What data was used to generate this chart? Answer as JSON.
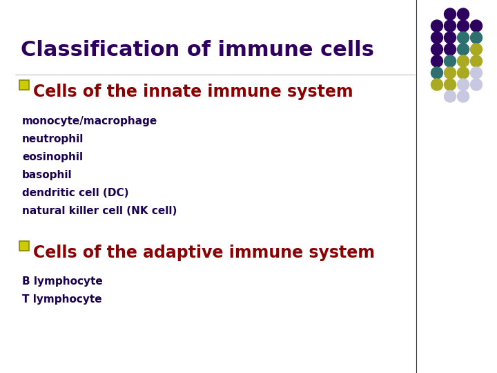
{
  "background_color": "#ffffff",
  "title": "Classification of immune cells",
  "title_color": "#2d0060",
  "title_fontsize": 22,
  "section1_header": "Cells of the innate immune system",
  "section1_header_color": "#8b0000",
  "section1_header_fontsize": 17,
  "section1_items": [
    "monocyte/macrophage",
    "neutrophil",
    "eosinophil",
    "basophil",
    "dendritic cell (DC)",
    "natural killer cell (NK cell)"
  ],
  "section1_items_color": "#1a0050",
  "section1_items_fontsize": 11,
  "section2_header": "Cells of the adaptive immune system",
  "section2_header_color": "#8b0000",
  "section2_header_fontsize": 17,
  "section2_items": [
    "B lymphocyte",
    "T lymphocyte"
  ],
  "section2_items_color": "#1a0050",
  "section2_items_fontsize": 11,
  "checkbox_fill": "#cccc00",
  "dot_grid": {
    "rows": 8,
    "cols": 4,
    "colors": [
      [
        "none",
        "#2d0060",
        "#2d0060",
        "none"
      ],
      [
        "#2d0060",
        "#2d0060",
        "#2d0060",
        "#2d0060"
      ],
      [
        "#2d0060",
        "#2d0060",
        "#2d7070",
        "#2d7070"
      ],
      [
        "#2d0060",
        "#2d0060",
        "#2d7070",
        "#aaaa22"
      ],
      [
        "#2d0060",
        "#2d7070",
        "#aaaa22",
        "#aaaa22"
      ],
      [
        "#2d7070",
        "#aaaa22",
        "#aaaa22",
        "#c8c8e0"
      ],
      [
        "#aaaa22",
        "#aaaa22",
        "#c8c8e0",
        "#c8c8e0"
      ],
      [
        "none",
        "#c8c8e0",
        "#c8c8e0",
        "none"
      ]
    ]
  },
  "vline_x_fig": 0.838,
  "vline_color": "#333333"
}
